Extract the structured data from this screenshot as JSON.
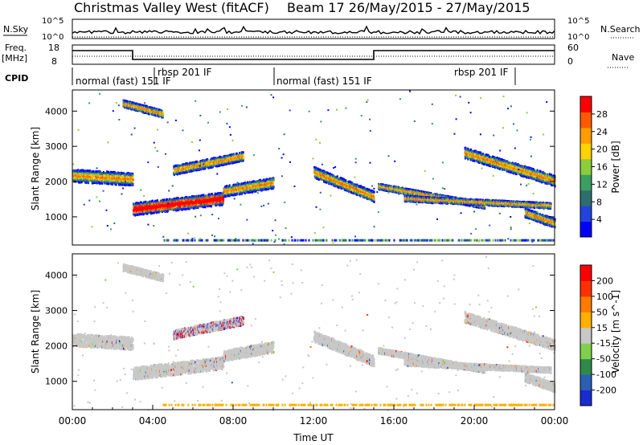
{
  "header": {
    "title": "Christmas Valley West (fitACF)",
    "subtitle": "Beam 17  26/May/2015 - 27/May/2015"
  },
  "top_panels": {
    "nsky_label": "N.Sky",
    "nsky_ticks": [
      "10^5",
      "10^0"
    ],
    "nsearch_label": "N.Search",
    "nsearch_ticks": [
      "10^5",
      "10^0"
    ],
    "freq_label": "Freq.",
    "freq_unit": "[MHz]",
    "freq_ticks": [
      "18",
      "8"
    ],
    "nave_label": "Nave",
    "nave_ticks": [
      "60",
      "0"
    ],
    "cpid_label": "CPID",
    "cpid_segments": [
      "normal (fast) 151 IF",
      "rbsp 201 IF",
      "normal (fast) 151 IF",
      "rbsp 201 IF"
    ]
  },
  "chart_data": [
    {
      "type": "heatmap",
      "quantity": "Power",
      "ylabel": "Slant Range [km]",
      "xlabel": "",
      "ylim": [
        200,
        4600
      ],
      "yticks": [
        "1000",
        "2000",
        "3000",
        "4000"
      ],
      "xlim_hours": [
        0,
        24
      ],
      "colorbar": {
        "label": "Power [dB]",
        "ticks": [
          "4",
          "8",
          "12",
          "16",
          "20",
          "24",
          "28"
        ],
        "range": [
          0,
          32
        ],
        "colors": [
          "#0000ff",
          "#2244dd",
          "#2f6e6e",
          "#3aa060",
          "#8ccd3c",
          "#ffd200",
          "#ff9c00",
          "#ff5a00",
          "#ff0000"
        ]
      }
    },
    {
      "type": "heatmap",
      "quantity": "Velocity",
      "ylabel": "Slant Range [km]",
      "xlabel": "Time UT",
      "ylim": [
        200,
        4600
      ],
      "yticks": [
        "1000",
        "2000",
        "3000",
        "4000"
      ],
      "xticks": [
        "00:00",
        "04:00",
        "08:00",
        "12:00",
        "16:00",
        "20:00",
        "00:00"
      ],
      "xlim_hours": [
        0,
        24
      ],
      "colorbar": {
        "label": "Velocity [m s^-1]",
        "ticks": [
          "200",
          "100",
          "50",
          "15",
          "-15",
          "-50",
          "-100",
          "-200"
        ],
        "colors": [
          "#1a2bd1",
          "#2a5fb6",
          "#2f8a4a",
          "#7fd14c",
          "#c8c8c8",
          "#ffb000",
          "#ff7a00",
          "#ff3000",
          "#ff0000"
        ]
      }
    }
  ]
}
